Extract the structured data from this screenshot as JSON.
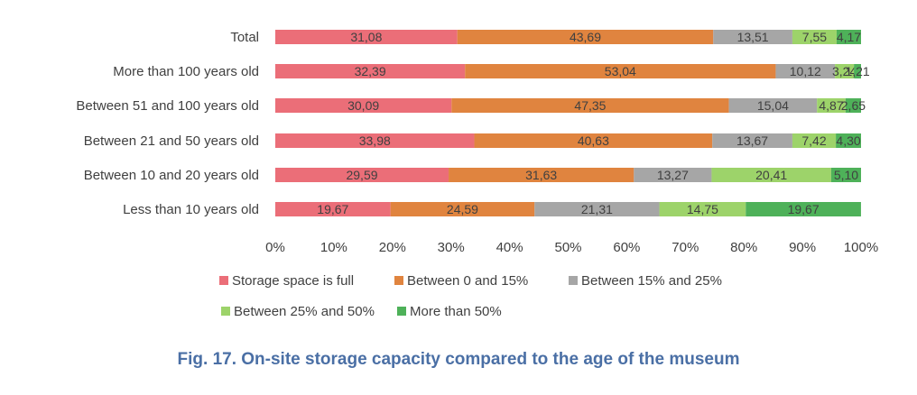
{
  "chart_data": {
    "type": "bar",
    "orientation": "horizontal",
    "stacked": "100%",
    "categories": [
      "Total",
      "More than 100 years old",
      "Between 51 and 100 years old",
      "Between 21 and 50 years old",
      "Between 10 and 20 years old",
      "Less than 10 years old"
    ],
    "series": [
      {
        "name": "Storage space is full",
        "color": "#eb6e78",
        "values": [
          31.08,
          32.39,
          30.09,
          33.98,
          29.59,
          19.67
        ],
        "labels": [
          "31,08",
          "32,39",
          "30,09",
          "33,98",
          "29,59",
          "19,67"
        ]
      },
      {
        "name": "Between 0 and 15%",
        "color": "#e0843f",
        "values": [
          43.69,
          53.04,
          47.35,
          40.63,
          31.63,
          24.59
        ],
        "labels": [
          "43,69",
          "53,04",
          "47,35",
          "40,63",
          "31,63",
          "24,59"
        ]
      },
      {
        "name": "Between 15% and 25%",
        "color": "#a6a6a6",
        "values": [
          13.51,
          10.12,
          15.04,
          13.67,
          13.27,
          21.31
        ],
        "labels": [
          "13,51",
          "10,12",
          "15,04",
          "13,67",
          "13,27",
          "21,31"
        ]
      },
      {
        "name": "Between 25% and 50%",
        "color": "#9dd36a",
        "values": [
          7.55,
          3.24,
          4.87,
          7.42,
          20.41,
          14.75
        ],
        "labels": [
          "7,55",
          "3,24",
          "4,87",
          "7,42",
          "20,41",
          "14,75"
        ]
      },
      {
        "name": "More than 50%",
        "color": "#4eb159",
        "values": [
          4.17,
          1.21,
          2.65,
          4.3,
          5.1,
          19.67
        ],
        "labels": [
          "4,17",
          "1,21",
          "2,65",
          "4,30",
          "5,10",
          "19,67"
        ]
      }
    ],
    "x_ticks": [
      "0%",
      "10%",
      "20%",
      "30%",
      "40%",
      "50%",
      "60%",
      "70%",
      "80%",
      "90%",
      "100%"
    ],
    "xlim": [
      0,
      100
    ],
    "grid": false,
    "legend": "bottom",
    "title": "Fig. 17. On-site storage capacity compared to the age of the museum"
  }
}
